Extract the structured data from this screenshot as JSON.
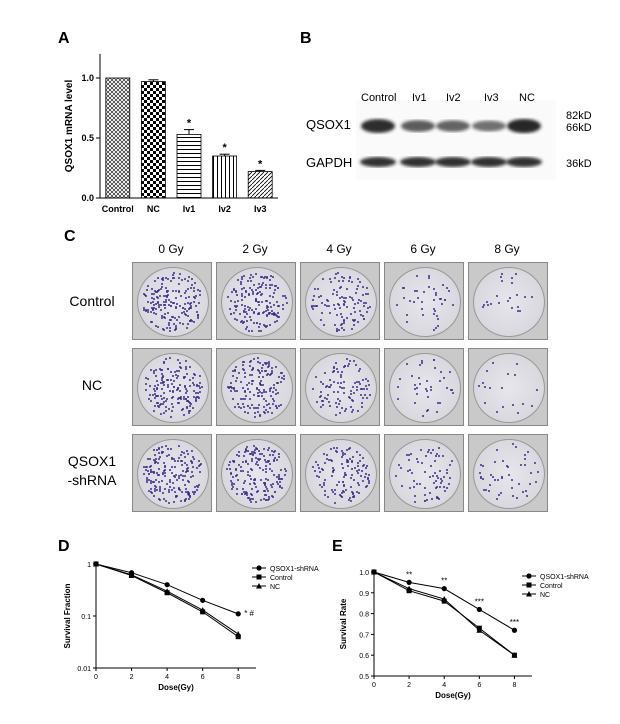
{
  "panels": {
    "A": "A",
    "B": "B",
    "C": "C",
    "D": "D",
    "E": "E"
  },
  "panel_b": {
    "columns": [
      "Control",
      "Iv1",
      "Iv2",
      "Iv3",
      "NC"
    ],
    "rows": [
      "QSOX1",
      "GAPDH"
    ],
    "markers": [
      "82kD",
      "66kD",
      "36kD"
    ]
  },
  "panel_c": {
    "columns": [
      "0 Gy",
      "2 Gy",
      "4 Gy",
      "6 Gy",
      "8 Gy"
    ],
    "rows": [
      {
        "line1": "Control",
        "line2": ""
      },
      {
        "line1": "NC",
        "line2": ""
      },
      {
        "line1": "QSOX1",
        "line2": "-shRNA"
      }
    ],
    "colony_counts": [
      [
        180,
        170,
        110,
        40,
        22
      ],
      [
        170,
        160,
        100,
        38,
        18
      ],
      [
        185,
        175,
        120,
        70,
        45
      ]
    ]
  },
  "chart_data": [
    {
      "id": "A",
      "type": "bar",
      "categories": [
        "Control",
        "NC",
        "Iv1",
        "Iv2",
        "Iv3"
      ],
      "values": [
        1.0,
        0.97,
        0.53,
        0.35,
        0.22
      ],
      "errors": [
        0.0,
        0.015,
        0.04,
        0.015,
        0.01
      ],
      "significance": [
        "",
        "",
        "*",
        "*",
        "*"
      ],
      "ylabel": "QSOX1 mRNA level",
      "ylim": [
        0,
        1.2
      ],
      "yticks": [
        "0.0",
        "0.5",
        "1.0"
      ],
      "ytick_values": [
        0,
        0.5,
        1.0
      ]
    },
    {
      "id": "D",
      "type": "line",
      "x": [
        0,
        2,
        4,
        6,
        8
      ],
      "xticks": [
        "0",
        "2",
        "4",
        "6",
        "8"
      ],
      "xlabel": "Dose(Gy)",
      "ylabel": "Survival Fraction",
      "yscale": "log",
      "ylim": [
        0.01,
        1
      ],
      "yticks": [
        "1",
        "0.1",
        "0.01"
      ],
      "ytick_values": [
        1,
        0.1,
        0.01
      ],
      "series": [
        {
          "name": "QSOX1-shRNA",
          "marker": "circle",
          "values": [
            1.0,
            0.68,
            0.4,
            0.2,
            0.11
          ]
        },
        {
          "name": "Control",
          "marker": "square",
          "values": [
            1.0,
            0.6,
            0.28,
            0.12,
            0.04
          ]
        },
        {
          "name": "NC",
          "marker": "triangle",
          "values": [
            1.0,
            0.62,
            0.3,
            0.13,
            0.045
          ]
        }
      ],
      "annotation": "* #"
    },
    {
      "id": "E",
      "type": "line",
      "x": [
        0,
        2,
        4,
        6,
        8
      ],
      "xticks": [
        "0",
        "2",
        "4",
        "6",
        "8"
      ],
      "xlabel": "Dose(Gy)",
      "ylabel": "Survival Rate",
      "ylim": [
        0.5,
        1.0
      ],
      "yticks": [
        "0.5",
        "0.6",
        "0.7",
        "0.8",
        "0.9",
        "1.0"
      ],
      "ytick_values": [
        0.5,
        0.6,
        0.7,
        0.8,
        0.9,
        1.0
      ],
      "series": [
        {
          "name": "QSOX1-shRNA",
          "marker": "circle",
          "values": [
            1.0,
            0.95,
            0.92,
            0.82,
            0.72
          ]
        },
        {
          "name": "Control",
          "marker": "square",
          "values": [
            1.0,
            0.91,
            0.86,
            0.73,
            0.6
          ]
        },
        {
          "name": "NC",
          "marker": "triangle",
          "values": [
            1.0,
            0.92,
            0.87,
            0.72,
            0.6
          ]
        }
      ],
      "significance": [
        "",
        "**",
        "**",
        "***",
        "***"
      ]
    }
  ],
  "colors": {
    "line": "#000000",
    "colony": "#3c2f8a",
    "band": "#1a1a1a"
  }
}
